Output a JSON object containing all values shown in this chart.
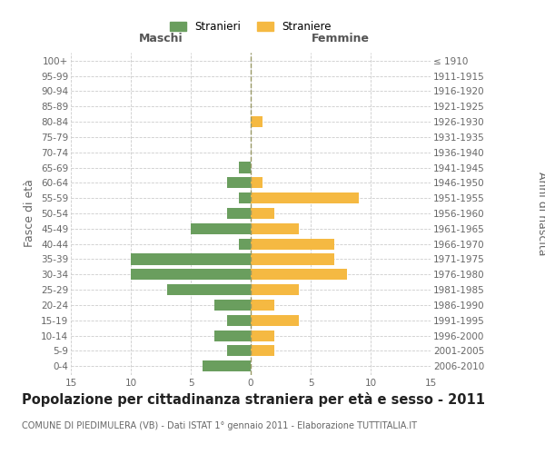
{
  "age_groups": [
    "0-4",
    "5-9",
    "10-14",
    "15-19",
    "20-24",
    "25-29",
    "30-34",
    "35-39",
    "40-44",
    "45-49",
    "50-54",
    "55-59",
    "60-64",
    "65-69",
    "70-74",
    "75-79",
    "80-84",
    "85-89",
    "90-94",
    "95-99",
    "100+"
  ],
  "birth_years": [
    "2006-2010",
    "2001-2005",
    "1996-2000",
    "1991-1995",
    "1986-1990",
    "1981-1985",
    "1976-1980",
    "1971-1975",
    "1966-1970",
    "1961-1965",
    "1956-1960",
    "1951-1955",
    "1946-1950",
    "1941-1945",
    "1936-1940",
    "1931-1935",
    "1926-1930",
    "1921-1925",
    "1916-1920",
    "1911-1915",
    "≤ 1910"
  ],
  "maschi": [
    4,
    2,
    3,
    2,
    3,
    7,
    10,
    10,
    1,
    5,
    2,
    1,
    2,
    1,
    0,
    0,
    0,
    0,
    0,
    0,
    0
  ],
  "femmine": [
    0,
    2,
    2,
    4,
    2,
    4,
    8,
    7,
    7,
    4,
    2,
    9,
    1,
    0,
    0,
    0,
    1,
    0,
    0,
    0,
    0
  ],
  "male_color": "#6a9e5e",
  "female_color": "#f5b942",
  "grid_color": "#cccccc",
  "center_line_color": "#999966",
  "bg_color": "#ffffff",
  "title": "Popolazione per cittadinanza straniera per età e sesso - 2011",
  "subtitle": "COMUNE DI PIEDIMULERA (VB) - Dati ISTAT 1° gennaio 2011 - Elaborazione TUTTITALIA.IT",
  "xlabel_left": "Maschi",
  "xlabel_right": "Femmine",
  "ylabel_left": "Fasce di età",
  "ylabel_right": "Anni di nascita",
  "xlim": 15,
  "legend_stranieri": "Stranieri",
  "legend_straniere": "Straniere",
  "tick_fontsize": 7.5,
  "label_fontsize": 9,
  "title_fontsize": 10.5,
  "subtitle_fontsize": 7
}
